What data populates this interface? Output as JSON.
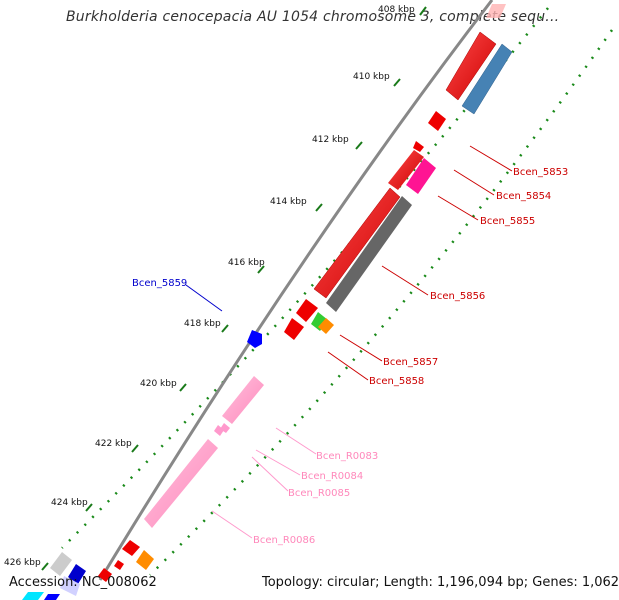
{
  "title": "Burkholderia cenocepacia AU 1054 chromosome 3, complete sequ...",
  "footer": {
    "accession": "Accession: NC_008062",
    "summary": "Topology: circular; Length: 1,196,094 bp; Genes: 1,062"
  },
  "ticks": [
    "408 kbp",
    "410 kbp",
    "412 kbp",
    "414 kbp",
    "416 kbp",
    "418 kbp",
    "420 kbp",
    "422 kbp",
    "424 kbp",
    "426 kbp"
  ],
  "gene_labels": {
    "bcen_5853": "Bcen_5853",
    "bcen_5854": "Bcen_5854",
    "bcen_5855": "Bcen_5855",
    "bcen_5856": "Bcen_5856",
    "bcen_5857": "Bcen_5857",
    "bcen_5858": "Bcen_5858",
    "bcen_5859": "Bcen_5859",
    "bcen_r0083": "Bcen_R0083",
    "bcen_r0084": "Bcen_R0084",
    "bcen_r0085": "Bcen_R0085",
    "bcen_r0086": "Bcen_R0086"
  },
  "colors": {
    "cds": "#ff0000",
    "rrna": "#ff99cc",
    "backbone": "#7a7a7a",
    "gc_dots": "#1a8a1a",
    "steelblue_feature": "#4682b4",
    "magenta_feature": "#ff1493",
    "gray_feature": "#666666",
    "blue_feature": "#0000ff"
  }
}
